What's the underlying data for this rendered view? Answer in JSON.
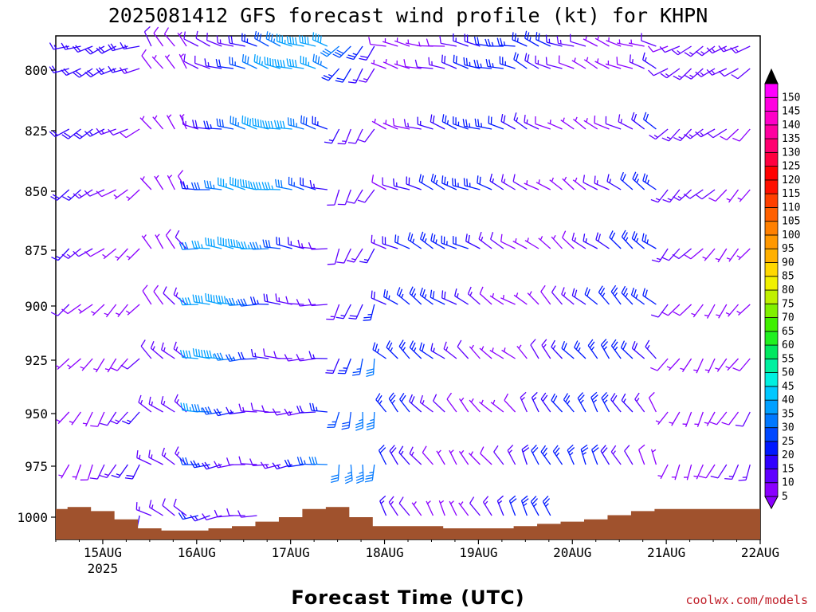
{
  "title": "2025081412 GFS forecast wind profile (kt) for KHPN",
  "xlabel": "Forecast Time (UTC)",
  "credit": "coolwx.com/models",
  "chart_data": {
    "type": "wind-barbs-time-height",
    "title": "2025081412 GFS forecast wind profile (kt) for KHPN",
    "xlabel": "Forecast Time (UTC)",
    "x_ticks": [
      "15AUG",
      "16AUG",
      "17AUG",
      "18AUG",
      "19AUG",
      "20AUG",
      "21AUG",
      "22AUG"
    ],
    "x_year_label": "2025",
    "x_range_hours": [
      0,
      180
    ],
    "y_axis": "pressure (hPa), inverted",
    "y_ticks": [
      800,
      825,
      850,
      875,
      900,
      925,
      950,
      975,
      1000
    ],
    "levels": [
      775,
      800,
      825,
      850,
      875,
      900,
      925,
      950,
      975,
      1000
    ],
    "speed_unit": "kt",
    "colorbar": {
      "labels": [
        5,
        10,
        15,
        20,
        25,
        30,
        35,
        40,
        45,
        50,
        55,
        60,
        65,
        70,
        75,
        80,
        85,
        90,
        95,
        100,
        105,
        110,
        115,
        120,
        125,
        130,
        135,
        140,
        145,
        150
      ],
      "colors": [
        "#8a00ff",
        "#6000ff",
        "#3000ff",
        "#0018ff",
        "#0048ff",
        "#0078ff",
        "#00a0ff",
        "#00c8ff",
        "#00f0e0",
        "#00f0a0",
        "#00e860",
        "#20f020",
        "#40f000",
        "#80f000",
        "#c0f000",
        "#f0f000",
        "#ffd800",
        "#ffb000",
        "#ff9800",
        "#ff8000",
        "#ff6000",
        "#ff4000",
        "#ff1000",
        "#ff0000",
        "#ff0040",
        "#ff0070",
        "#ff00a0",
        "#ff00c8",
        "#ff00e0",
        "#ff00ff"
      ],
      "arrows": true
    },
    "surface_pressure": [
      {
        "t": 0,
        "p": 996
      },
      {
        "t": 6,
        "p": 995
      },
      {
        "t": 12,
        "p": 997
      },
      {
        "t": 18,
        "p": 1001
      },
      {
        "t": 24,
        "p": 1005
      },
      {
        "t": 30,
        "p": 1006
      },
      {
        "t": 36,
        "p": 1006
      },
      {
        "t": 42,
        "p": 1005
      },
      {
        "t": 48,
        "p": 1004
      },
      {
        "t": 54,
        "p": 1002
      },
      {
        "t": 60,
        "p": 1000
      },
      {
        "t": 66,
        "p": 996
      },
      {
        "t": 72,
        "p": 995
      },
      {
        "t": 78,
        "p": 1000
      },
      {
        "t": 84,
        "p": 1004
      },
      {
        "t": 90,
        "p": 1004
      },
      {
        "t": 96,
        "p": 1004
      },
      {
        "t": 102,
        "p": 1005
      },
      {
        "t": 108,
        "p": 1005
      },
      {
        "t": 114,
        "p": 1005
      },
      {
        "t": 120,
        "p": 1004
      },
      {
        "t": 126,
        "p": 1003
      },
      {
        "t": 132,
        "p": 1002
      },
      {
        "t": 138,
        "p": 1001
      },
      {
        "t": 144,
        "p": 999
      },
      {
        "t": 150,
        "p": 997
      },
      {
        "t": 156,
        "p": 996
      },
      {
        "t": 162,
        "p": 996
      },
      {
        "t": 168,
        "p": 996
      },
      {
        "t": 174,
        "p": 996
      },
      {
        "t": 180,
        "p": 996
      }
    ],
    "wind_regimes": [
      {
        "t_start": 0,
        "t_end": 24,
        "direction": [
          200,
          230,
          250
        ],
        "speed": [
          5,
          20
        ]
      },
      {
        "t_start": 24,
        "t_end": 36,
        "direction": [
          300,
          320,
          330
        ],
        "speed": [
          5,
          15
        ]
      },
      {
        "t_start": 36,
        "t_end": 72,
        "direction": [
          260,
          275,
          290
        ],
        "speed": [
          10,
          40
        ]
      },
      {
        "t_start": 72,
        "t_end": 84,
        "direction": [
          180,
          200,
          220
        ],
        "speed": [
          10,
          35
        ]
      },
      {
        "t_start": 84,
        "t_end": 120,
        "direction": [
          330,
          300,
          280
        ],
        "speed": [
          5,
          25
        ]
      },
      {
        "t_start": 120,
        "t_end": 156,
        "direction": [
          340,
          310,
          290
        ],
        "speed": [
          5,
          25
        ]
      },
      {
        "t_start": 156,
        "t_end": 180,
        "direction": [
          200,
          220,
          240
        ],
        "speed": [
          5,
          15
        ]
      }
    ]
  }
}
